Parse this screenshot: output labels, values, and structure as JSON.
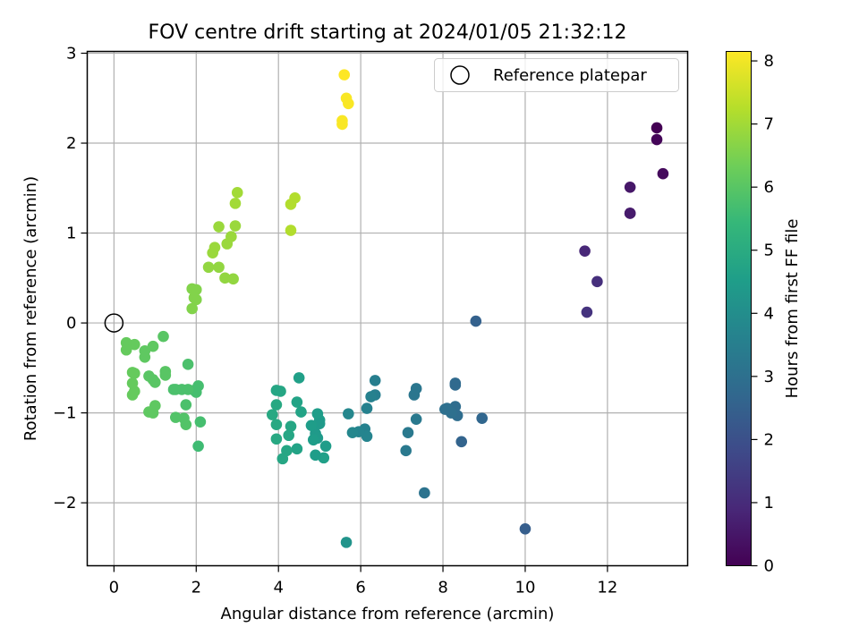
{
  "chart_data": {
    "type": "scatter",
    "title": "FOV centre drift starting at 2024/01/05 21:32:12",
    "xlabel": "Angular distance from reference (arcmin)",
    "ylabel": "Rotation from reference (arcmin)",
    "xlim": [
      -0.65,
      13.95
    ],
    "ylim": [
      -2.7,
      3.02
    ],
    "xticks": [
      0,
      2,
      4,
      6,
      8,
      10,
      12
    ],
    "yticks": [
      -2,
      -1,
      0,
      1,
      2,
      3
    ],
    "grid": true,
    "legend": {
      "position": "top-right",
      "entries": [
        "Reference platepar"
      ]
    },
    "reference_point": {
      "x": 0,
      "y": 0
    },
    "colorbar": {
      "label": "Hours from first FF file",
      "min": 0,
      "max": 8.15,
      "ticks": [
        0,
        1,
        2,
        3,
        4,
        5,
        6,
        7,
        8
      ],
      "colormap": "viridis"
    },
    "colormap_stops": [
      "#440154",
      "#482878",
      "#3e4a89",
      "#31688e",
      "#26828e",
      "#1f9e89",
      "#35b779",
      "#6ece58",
      "#b5de2b",
      "#fde725"
    ],
    "series": [
      {
        "points": [
          [
            13.2,
            2.17,
            0.0
          ],
          [
            13.2,
            2.04,
            0.1
          ],
          [
            13.35,
            1.66,
            0.2
          ],
          [
            12.55,
            1.51,
            0.5
          ],
          [
            12.55,
            1.22,
            0.6
          ],
          [
            12.55,
            1.22,
            0.6
          ],
          [
            11.45,
            0.8,
            0.9
          ],
          [
            11.75,
            0.46,
            1.1
          ],
          [
            11.5,
            0.12,
            1.2
          ],
          [
            10.0,
            -2.29,
            2.4
          ],
          [
            8.8,
            0.02,
            2.5
          ],
          [
            8.95,
            -1.06,
            2.7
          ],
          [
            8.45,
            -1.32,
            2.6
          ],
          [
            8.3,
            -0.67,
            2.8
          ],
          [
            8.3,
            -0.69,
            2.8
          ],
          [
            8.3,
            -0.93,
            2.9
          ],
          [
            8.35,
            -1.03,
            2.9
          ],
          [
            8.2,
            -1.0,
            3.0
          ],
          [
            8.05,
            -0.96,
            3.0
          ],
          [
            8.1,
            -0.95,
            3.0
          ],
          [
            7.55,
            -1.89,
            3.1
          ],
          [
            7.35,
            -0.73,
            3.2
          ],
          [
            7.3,
            -0.8,
            3.2
          ],
          [
            7.35,
            -1.07,
            3.3
          ],
          [
            7.15,
            -1.22,
            3.3
          ],
          [
            7.1,
            -1.42,
            3.3
          ],
          [
            6.35,
            -0.64,
            3.5
          ],
          [
            6.35,
            -0.8,
            3.5
          ],
          [
            6.25,
            -0.82,
            3.6
          ],
          [
            6.15,
            -0.95,
            3.6
          ],
          [
            6.1,
            -1.18,
            3.6
          ],
          [
            6.15,
            -1.26,
            3.7
          ],
          [
            5.95,
            -1.21,
            3.7
          ],
          [
            5.8,
            -1.22,
            3.8
          ],
          [
            5.7,
            -1.01,
            3.8
          ],
          [
            5.65,
            -2.44,
            4.2
          ],
          [
            5.15,
            -1.37,
            4.5
          ],
          [
            5.1,
            -1.5,
            4.6
          ],
          [
            5.0,
            -1.08,
            4.5
          ],
          [
            4.95,
            -1.01,
            4.5
          ],
          [
            5.0,
            -1.12,
            4.4
          ],
          [
            4.9,
            -1.23,
            4.4
          ],
          [
            4.95,
            -1.28,
            4.4
          ],
          [
            4.85,
            -1.3,
            4.5
          ],
          [
            4.8,
            -1.14,
            4.5
          ],
          [
            4.9,
            -1.47,
            4.5
          ],
          [
            4.5,
            -0.61,
            4.6
          ],
          [
            4.55,
            -0.99,
            4.7
          ],
          [
            4.45,
            -0.88,
            4.7
          ],
          [
            4.45,
            -1.4,
            4.7
          ],
          [
            4.3,
            -1.15,
            4.8
          ],
          [
            4.25,
            -1.25,
            4.8
          ],
          [
            4.2,
            -1.42,
            4.8
          ],
          [
            4.1,
            -1.51,
            4.8
          ],
          [
            4.05,
            -0.76,
            4.8
          ],
          [
            3.95,
            -0.75,
            4.8
          ],
          [
            3.95,
            -0.91,
            4.9
          ],
          [
            3.95,
            -1.13,
            4.9
          ],
          [
            3.85,
            -1.02,
            4.9
          ],
          [
            3.95,
            -1.29,
            4.9
          ],
          [
            2.05,
            -1.37,
            5.6
          ],
          [
            2.1,
            -1.1,
            5.7
          ],
          [
            2.05,
            -0.7,
            5.7
          ],
          [
            2.0,
            -0.77,
            5.7
          ],
          [
            1.95,
            -0.75,
            5.7
          ],
          [
            1.8,
            -0.74,
            5.8
          ],
          [
            1.65,
            -0.74,
            5.8
          ],
          [
            1.5,
            -0.74,
            5.8
          ],
          [
            1.45,
            -0.74,
            5.8
          ],
          [
            1.8,
            -0.46,
            5.8
          ],
          [
            1.75,
            -0.91,
            5.8
          ],
          [
            1.75,
            -1.13,
            5.9
          ],
          [
            1.7,
            -1.06,
            5.9
          ],
          [
            1.5,
            -1.05,
            5.9
          ],
          [
            1.25,
            -0.54,
            6.0
          ],
          [
            1.25,
            -0.58,
            6.0
          ],
          [
            1.2,
            -0.15,
            6.0
          ],
          [
            1.0,
            -0.66,
            6.0
          ],
          [
            0.95,
            -0.63,
            6.0
          ],
          [
            0.85,
            -0.59,
            6.0
          ],
          [
            0.85,
            -0.99,
            6.1
          ],
          [
            0.95,
            -1.0,
            6.1
          ],
          [
            1.0,
            -0.92,
            6.1
          ],
          [
            0.95,
            -0.26,
            6.1
          ],
          [
            0.75,
            -0.38,
            6.1
          ],
          [
            0.75,
            -0.31,
            6.1
          ],
          [
            0.5,
            -0.24,
            6.2
          ],
          [
            0.5,
            -0.56,
            6.2
          ],
          [
            0.45,
            -0.55,
            6.2
          ],
          [
            0.45,
            -0.8,
            6.2
          ],
          [
            0.5,
            -0.76,
            6.2
          ],
          [
            0.45,
            -0.67,
            6.2
          ],
          [
            0.3,
            -0.22,
            6.2
          ],
          [
            0.3,
            -0.3,
            6.2
          ],
          [
            1.9,
            0.38,
            6.6
          ],
          [
            2.0,
            0.37,
            6.6
          ],
          [
            2.0,
            0.26,
            6.6
          ],
          [
            1.95,
            0.28,
            6.6
          ],
          [
            1.9,
            0.16,
            6.6
          ],
          [
            2.3,
            0.62,
            6.8
          ],
          [
            2.55,
            0.62,
            6.8
          ],
          [
            2.7,
            0.5,
            6.8
          ],
          [
            2.9,
            0.49,
            6.8
          ],
          [
            2.45,
            0.84,
            6.9
          ],
          [
            2.4,
            0.78,
            6.9
          ],
          [
            2.75,
            0.88,
            6.9
          ],
          [
            2.85,
            0.96,
            6.9
          ],
          [
            2.55,
            1.07,
            6.9
          ],
          [
            2.95,
            1.08,
            6.9
          ],
          [
            2.95,
            1.33,
            7.0
          ],
          [
            3.0,
            1.45,
            7.0
          ],
          [
            4.3,
            1.03,
            7.2
          ],
          [
            4.3,
            1.32,
            7.2
          ],
          [
            4.4,
            1.39,
            7.2
          ],
          [
            5.55,
            2.25,
            8.1
          ],
          [
            5.55,
            2.21,
            8.1
          ],
          [
            5.65,
            2.5,
            8.1
          ],
          [
            5.7,
            2.44,
            8.1
          ],
          [
            5.6,
            2.76,
            8.15
          ]
        ]
      }
    ]
  }
}
